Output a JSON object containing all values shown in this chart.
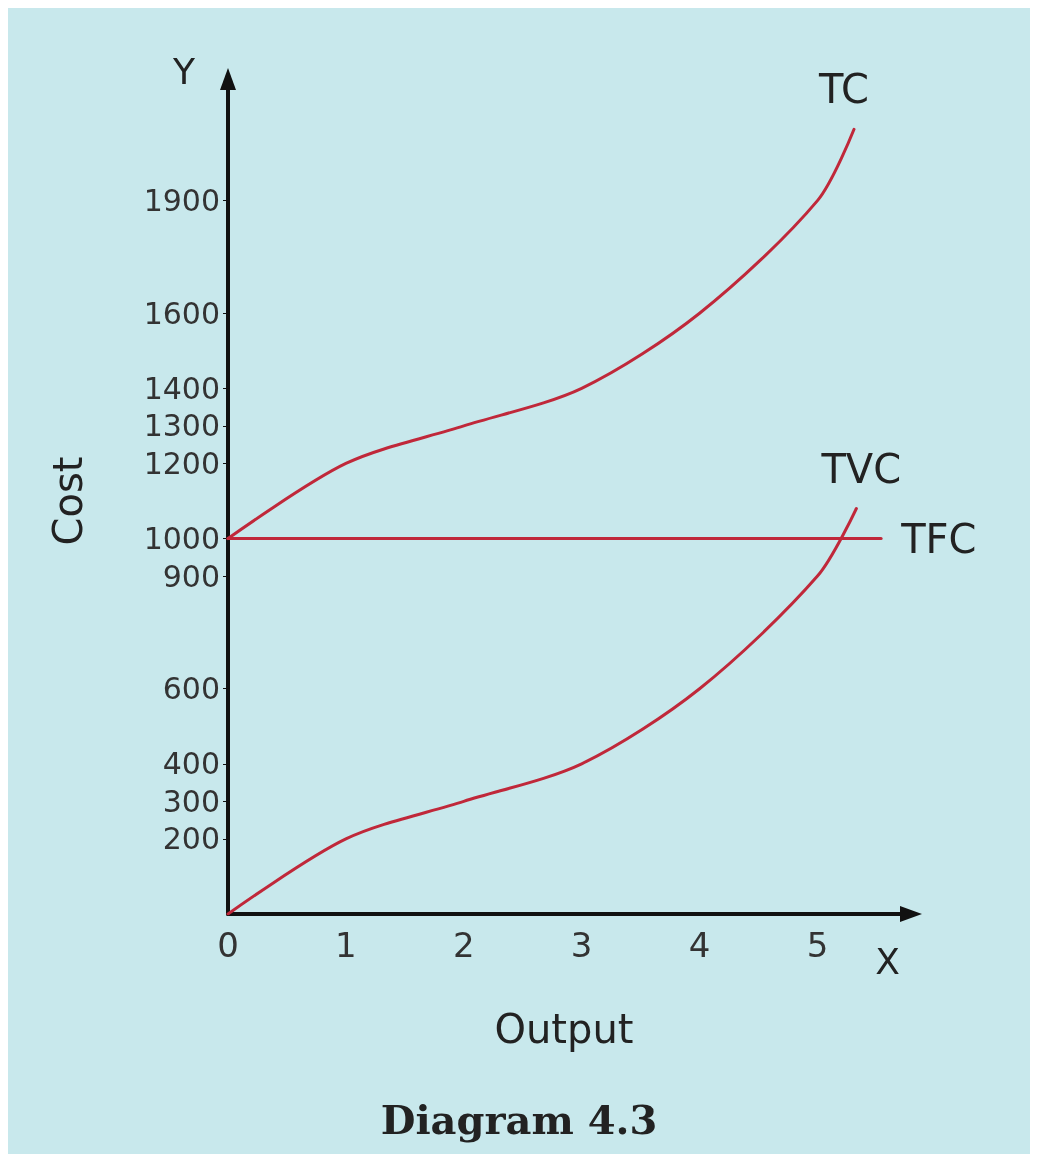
{
  "chart_data": {
    "type": "line",
    "title": "Diagram 4.3",
    "xlabel": "Output",
    "ylabel": "Cost",
    "annotations": [
      "Y",
      "X"
    ],
    "xlim": [
      0,
      5.7
    ],
    "xticks": [
      0,
      1,
      2,
      3,
      4,
      5
    ],
    "ylim": [
      0,
      2200
    ],
    "yticks": [
      200,
      300,
      400,
      600,
      900,
      1000,
      1200,
      1300,
      1400,
      1600,
      1900
    ],
    "series": [
      {
        "name": "TC",
        "color": "#c0283a",
        "x": [
          0,
          1,
          2,
          3,
          4,
          5,
          5.31
        ],
        "values": [
          1000,
          1200,
          1300,
          1400,
          1600,
          1900,
          2090
        ]
      },
      {
        "name": "TVC",
        "color": "#c0283a",
        "x": [
          0,
          1,
          2,
          3,
          4,
          5,
          5.33
        ],
        "values": [
          0,
          200,
          300,
          400,
          600,
          900,
          1080
        ]
      },
      {
        "name": "TFC",
        "color": "#c0283a",
        "x": [
          0,
          5.54
        ],
        "values": [
          1000,
          1000
        ]
      }
    ],
    "grid": false,
    "legend": false,
    "marker": "none",
    "line_style": "solid"
  }
}
